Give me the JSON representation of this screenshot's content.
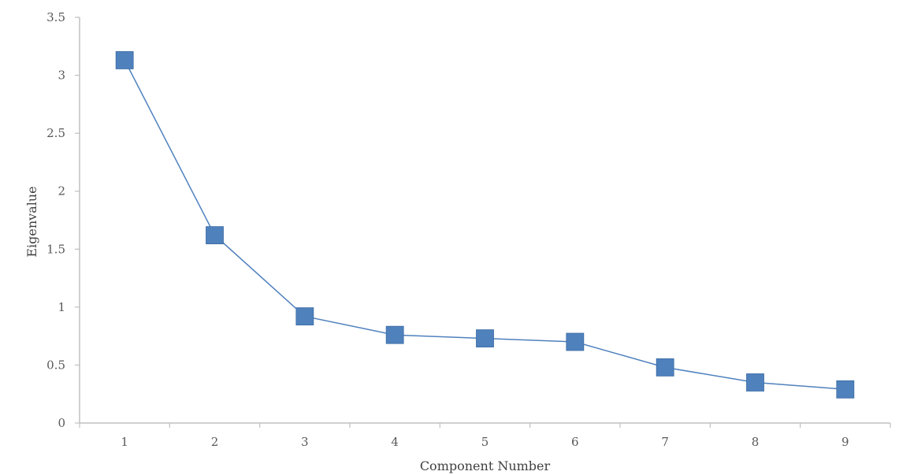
{
  "chart_data": {
    "type": "line",
    "title": "",
    "xlabel": "Component Number",
    "ylabel": "Eigenvalue",
    "x": [
      1,
      2,
      3,
      4,
      5,
      6,
      7,
      8,
      9
    ],
    "x_tick_labels": [
      "1",
      "2",
      "3",
      "4",
      "5",
      "6",
      "7",
      "8",
      "9"
    ],
    "ylim": [
      0,
      3.5
    ],
    "y_ticks": [
      0,
      0.5,
      1,
      1.5,
      2,
      2.5,
      3,
      3.5
    ],
    "y_tick_labels": [
      "0",
      "0.5",
      "1",
      "1.5",
      "2",
      "2.5",
      "3",
      "3.5"
    ],
    "series": [
      {
        "values": [
          3.13,
          1.62,
          0.92,
          0.76,
          0.73,
          0.7,
          0.48,
          0.35,
          0.29
        ],
        "marker": "square",
        "color": "#4f81bd"
      }
    ],
    "grid": false,
    "legend": "none"
  }
}
